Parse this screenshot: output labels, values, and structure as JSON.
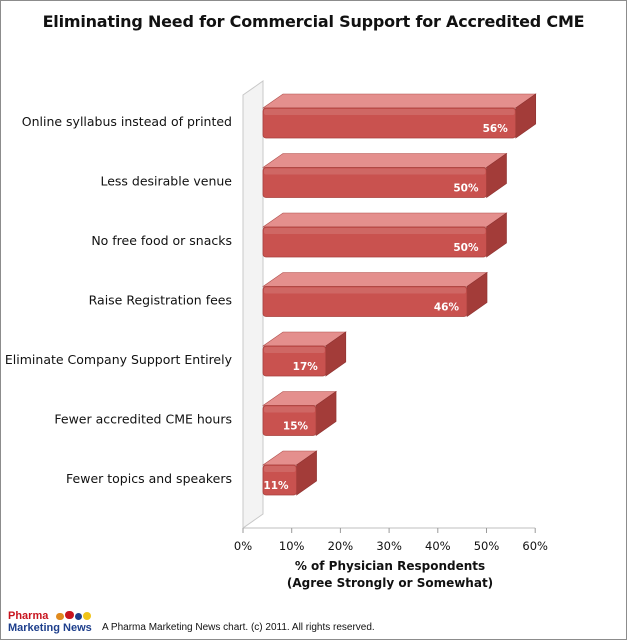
{
  "chart_data": {
    "type": "bar",
    "orientation": "horizontal",
    "title": "Eliminating Need for Commercial Support for Accredited CME",
    "categories": [
      "Online syllabus instead of printed",
      "Less desirable venue",
      "No free food or snacks",
      "Raise Registration fees",
      "Eliminate Company Support Entirely",
      "Fewer accredited CME hours",
      "Fewer topics and speakers"
    ],
    "values": [
      56,
      50,
      50,
      46,
      17,
      15,
      11
    ],
    "data_labels": [
      "56%",
      "50%",
      "50%",
      "46%",
      "17%",
      "15%",
      "11%"
    ],
    "xlabel_line1": "% of Physician Respondents",
    "xlabel_line2": "(Agree Strongly or Somewhat)",
    "xlim": [
      0,
      60
    ],
    "xticks": [
      "0%",
      "10%",
      "20%",
      "30%",
      "40%",
      "50%",
      "60%"
    ],
    "grid": false,
    "style": "3d-bar",
    "colors": {
      "bar_front": "#c9524f",
      "bar_top": "#e48f8d",
      "bar_side": "#a33c39",
      "wall": "#e6e6e6"
    }
  },
  "footer": {
    "logo_line1": "Pharma",
    "logo_line2": "Marketing News",
    "credit": "A Pharma Marketing News chart. (c) 2011. All rights reserved."
  }
}
